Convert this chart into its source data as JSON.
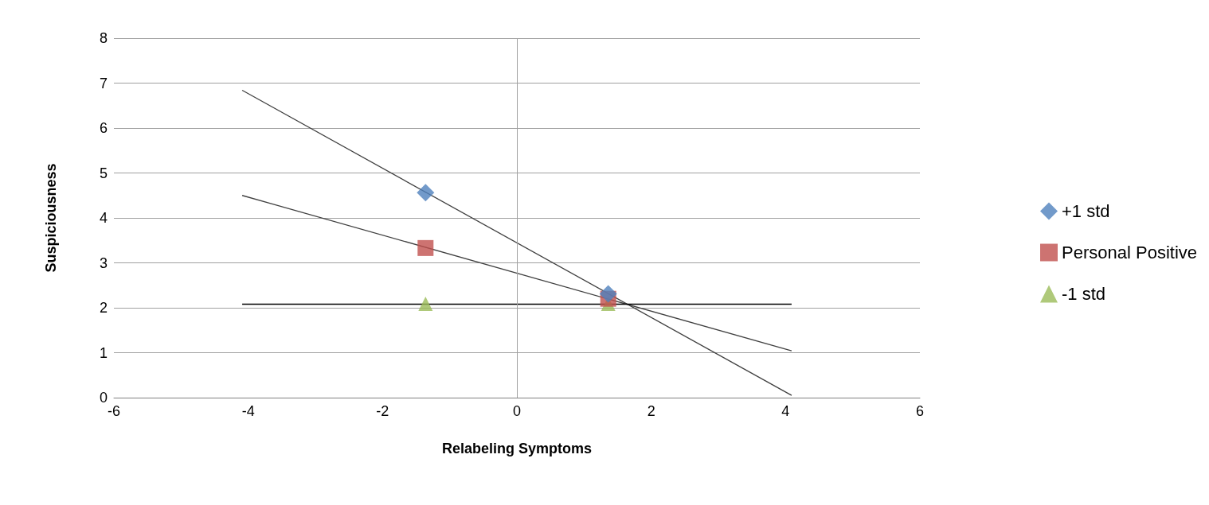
{
  "chart_data": {
    "type": "scatter",
    "xlabel": "Relabeling Symptoms",
    "ylabel": "Suspiciousness",
    "xlim": [
      -6,
      6
    ],
    "xticks": [
      -6,
      -4,
      -2,
      0,
      2,
      4,
      6
    ],
    "ylim": [
      0,
      8
    ],
    "yticks": [
      0,
      1,
      2,
      3,
      4,
      5,
      6,
      7,
      8
    ],
    "grid": "y",
    "legend": "right",
    "ref_lines": [
      {
        "axis": "x",
        "value": 0,
        "color": "#a0a0a0"
      }
    ],
    "series": [
      {
        "name": "+1 std",
        "color": "#4f81bd",
        "marker": "diamond",
        "x": [
          -1.36,
          1.36
        ],
        "values": [
          4.56,
          2.31
        ]
      },
      {
        "name": "Personal Positive",
        "color": "#c0504d",
        "marker": "square",
        "x": [
          -1.36,
          1.36
        ],
        "values": [
          3.33,
          2.2
        ]
      },
      {
        "name": "-1 std",
        "color": "#9bbb59",
        "marker": "triangle",
        "x": [
          -1.36,
          1.36
        ],
        "values": [
          2.09,
          2.09
        ]
      },
      {
        "type": "line",
        "color": "#404040",
        "marker": "none",
        "x": [
          -4.09,
          4.09
        ],
        "values": [
          6.84,
          0.05
        ]
      },
      {
        "type": "line",
        "color": "#404040",
        "marker": "none",
        "x": [
          -4.09,
          4.09
        ],
        "values": [
          4.5,
          1.04
        ]
      },
      {
        "type": "line",
        "color": "#000000",
        "marker": "none",
        "x": [
          -4.09,
          4.09
        ],
        "values": [
          2.08,
          2.08
        ]
      }
    ]
  }
}
